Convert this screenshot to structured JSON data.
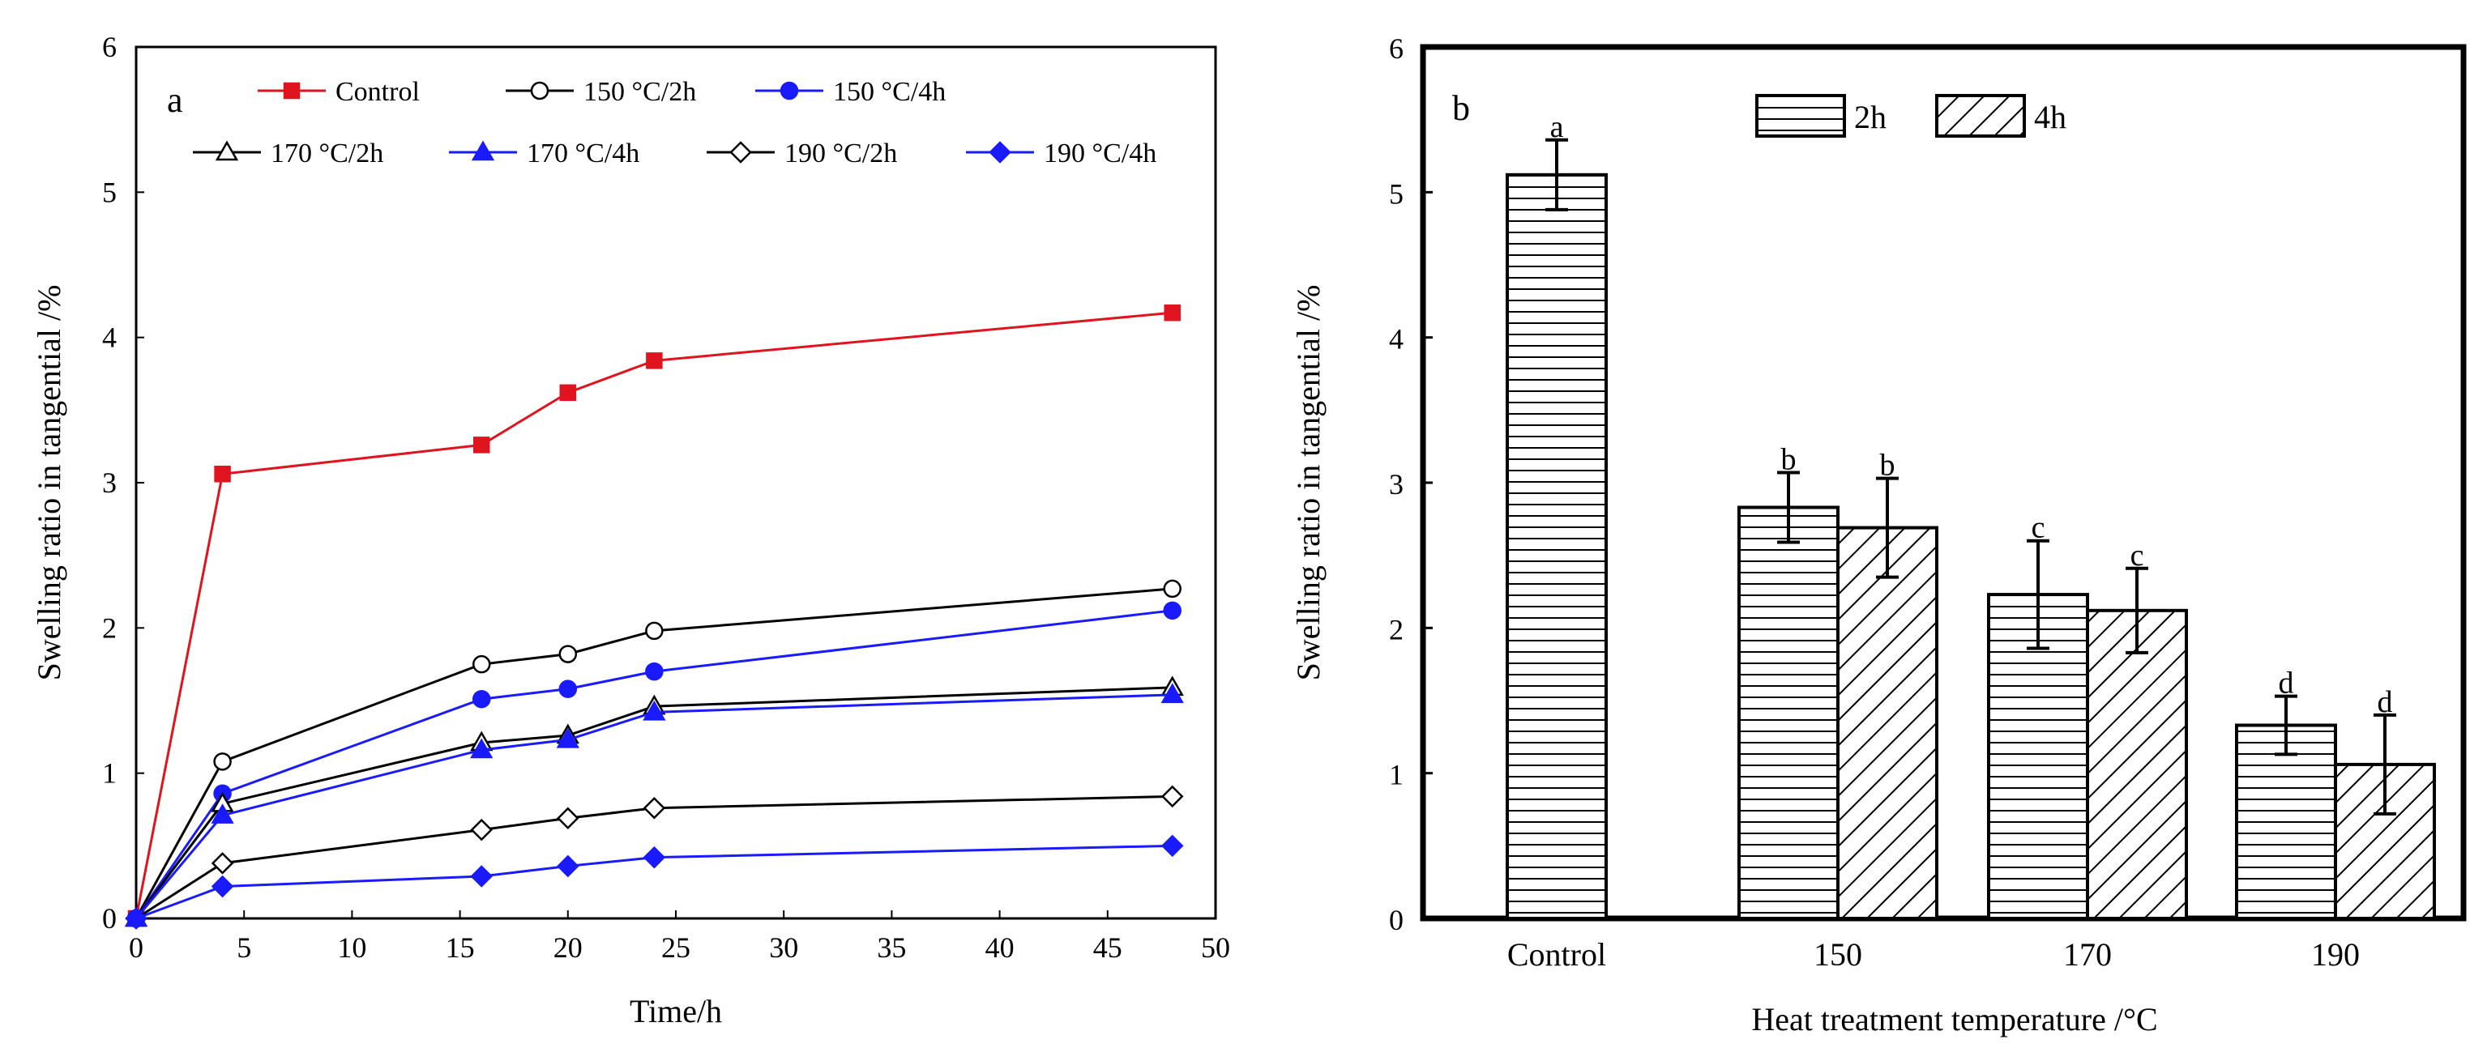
{
  "chart_data": [
    {
      "panel": "a",
      "type": "line",
      "xlabel": "Time/h",
      "ylabel": "Swelling  ratio  in  tangential  /%",
      "xlim": [
        0,
        50
      ],
      "ylim": [
        0,
        6
      ],
      "xticks": [
        0,
        5,
        10,
        15,
        20,
        25,
        30,
        35,
        40,
        45,
        50
      ],
      "yticks": [
        0,
        1,
        2,
        3,
        4,
        5,
        6
      ],
      "x": [
        0,
        4,
        16,
        20,
        24,
        48
      ],
      "series": [
        {
          "name": "Control",
          "color": "#e0141e",
          "marker": "square-filled",
          "values": [
            0,
            3.06,
            3.26,
            3.62,
            3.84,
            4.17
          ]
        },
        {
          "name": "150  °C/2h",
          "color": "#000000",
          "marker": "circle-open",
          "values": [
            0,
            1.08,
            1.75,
            1.82,
            1.98,
            2.27
          ]
        },
        {
          "name": "150  °C/4h",
          "color": "#1a1aff",
          "marker": "circle-filled",
          "values": [
            0,
            0.86,
            1.51,
            1.58,
            1.7,
            2.12
          ]
        },
        {
          "name": "170  °C/2h",
          "color": "#000000",
          "marker": "triangle-open",
          "values": [
            0,
            0.79,
            1.21,
            1.26,
            1.46,
            1.59
          ]
        },
        {
          "name": "170  °C/4h",
          "color": "#1a1aff",
          "marker": "triangle-filled",
          "values": [
            0,
            0.71,
            1.16,
            1.23,
            1.42,
            1.54
          ]
        },
        {
          "name": "190  °C/2h",
          "color": "#000000",
          "marker": "diamond-open",
          "values": [
            0,
            0.38,
            0.61,
            0.69,
            0.76,
            0.84
          ]
        },
        {
          "name": "190  °C/4h",
          "color": "#1a1aff",
          "marker": "diamond-filled",
          "values": [
            0,
            0.22,
            0.29,
            0.36,
            0.42,
            0.5
          ]
        }
      ]
    },
    {
      "panel": "b",
      "type": "bar",
      "xlabel": "Heat  treatment  temperature  /°C",
      "ylabel": "Swelling  ratio  in  tangential  /%",
      "ylim": [
        0,
        6
      ],
      "yticks": [
        0,
        1,
        2,
        3,
        4,
        5,
        6
      ],
      "categories": [
        "Control",
        "150",
        "170",
        "190"
      ],
      "series": [
        {
          "name": "2h",
          "pattern": "horizontal",
          "values": [
            5.12,
            2.83,
            2.23,
            1.33
          ],
          "errors": [
            0.24,
            0.24,
            0.37,
            0.2
          ],
          "letters": [
            "a",
            "b",
            "c",
            "d"
          ]
        },
        {
          "name": "4h",
          "pattern": "diagonal",
          "values": [
            null,
            2.69,
            2.12,
            1.06
          ],
          "errors": [
            null,
            0.34,
            0.29,
            0.34
          ],
          "letters": [
            "",
            "b",
            "c",
            "d"
          ]
        }
      ]
    }
  ]
}
